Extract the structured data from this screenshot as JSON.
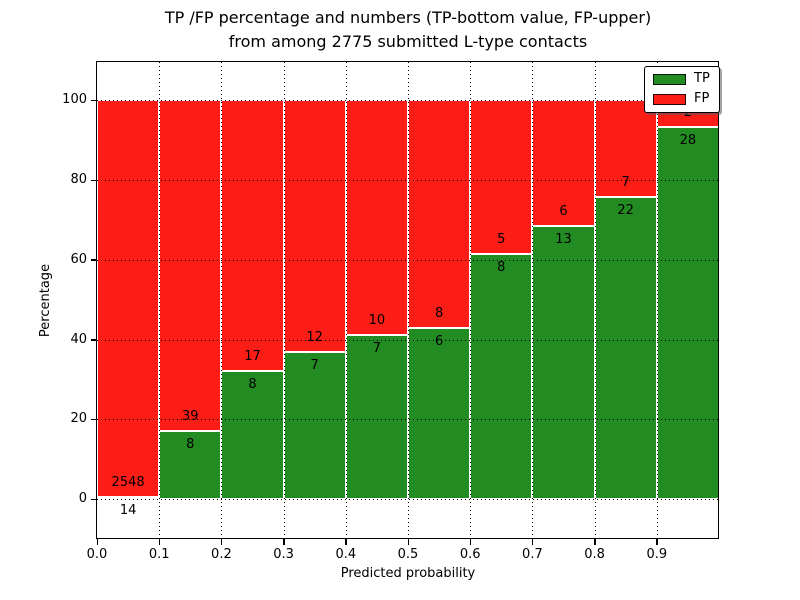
{
  "title": {
    "line1": "TP /FP percentage and numbers (TP-bottom value, FP-upper)",
    "line2": "from among 2775 submitted L-type contacts"
  },
  "axes": {
    "ylabel": "Percentage",
    "xlabel": "Predicted probability",
    "yticks": [
      0,
      20,
      40,
      60,
      80,
      100
    ],
    "xtick_labels": [
      "0.0",
      "0.1",
      "0.2",
      "0.3",
      "0.4",
      "0.5",
      "0.6",
      "0.7",
      "0.8",
      "0.9"
    ]
  },
  "legend": {
    "items": [
      {
        "label": "TP",
        "color": "#228b22"
      },
      {
        "label": "FP",
        "color": "#fc1d16"
      }
    ]
  },
  "chart_data": {
    "type": "bar",
    "stacked": true,
    "normalized_to_percent": true,
    "title": "TP /FP percentage and numbers (TP-bottom value, FP-upper) from among 2775 submitted L-type contacts",
    "xlabel": "Predicted probability",
    "ylabel": "Percentage",
    "total_contacts": 2775,
    "bin_start": [
      0.0,
      0.1,
      0.2,
      0.3,
      0.4,
      0.5,
      0.6,
      0.7,
      0.8,
      0.9
    ],
    "bin_width": 0.1,
    "series": [
      {
        "name": "TP",
        "color": "#228b22",
        "counts": [
          14,
          8,
          8,
          7,
          7,
          6,
          8,
          13,
          22,
          28
        ],
        "percent": [
          0.55,
          17.02,
          32.0,
          36.84,
          41.18,
          42.86,
          61.54,
          68.42,
          75.86,
          93.33
        ]
      },
      {
        "name": "FP",
        "color": "#fc1d16",
        "counts": [
          2548,
          39,
          17,
          12,
          10,
          8,
          5,
          6,
          7,
          2
        ],
        "percent": [
          99.45,
          82.98,
          68.0,
          63.16,
          58.82,
          57.14,
          38.46,
          31.58,
          24.14,
          6.67
        ]
      }
    ],
    "xlim": [
      0.0,
      1.0
    ],
    "ylim": [
      -10,
      109.6
    ],
    "grid": "dotted",
    "legend_position": "upper right"
  }
}
